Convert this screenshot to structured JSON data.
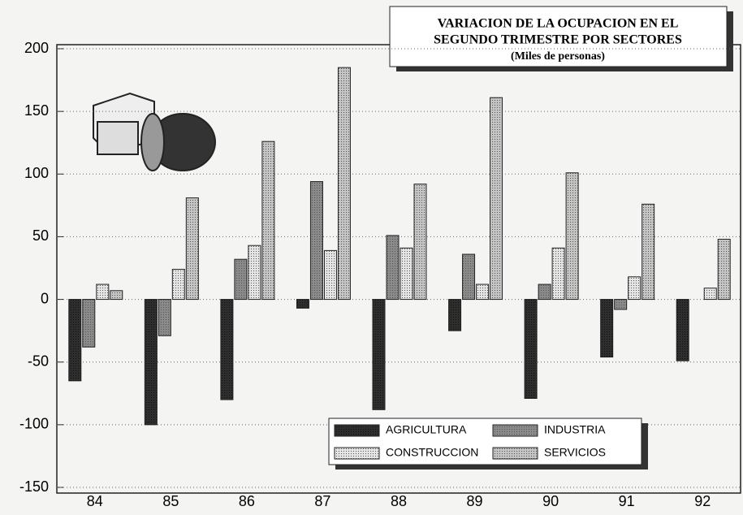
{
  "chart_data": {
    "type": "bar",
    "title": [
      "VARIACION DE LA OCUPACION EN EL",
      "SEGUNDO TRIMESTRE POR SECTORES"
    ],
    "subtitle": "(Miles de personas)",
    "categories": [
      "84",
      "85",
      "86",
      "87",
      "88",
      "89",
      "90",
      "91",
      "92"
    ],
    "series": [
      {
        "name": "AGRICULTURA",
        "color": "#2e2e2e",
        "values": [
          -65,
          -100,
          -80,
          -7,
          -88,
          -25,
          -79,
          -46,
          -49
        ]
      },
      {
        "name": "INDUSTRIA",
        "color": "#8a8a8a",
        "values": [
          -38,
          -29,
          32,
          94,
          51,
          36,
          12,
          -8,
          0
        ]
      },
      {
        "name": "CONSTRUCCION",
        "color": "#e4e4e4",
        "values": [
          12,
          24,
          43,
          39,
          41,
          12,
          41,
          18,
          9
        ]
      },
      {
        "name": "SERVICIOS",
        "color": "#c4c4c4",
        "values": [
          7,
          81,
          126,
          185,
          92,
          161,
          101,
          76,
          48
        ]
      }
    ],
    "ylim": [
      -150,
      200
    ],
    "yticks": [
      -150,
      -100,
      -50,
      0,
      50,
      100,
      150,
      200
    ],
    "grid": true
  }
}
